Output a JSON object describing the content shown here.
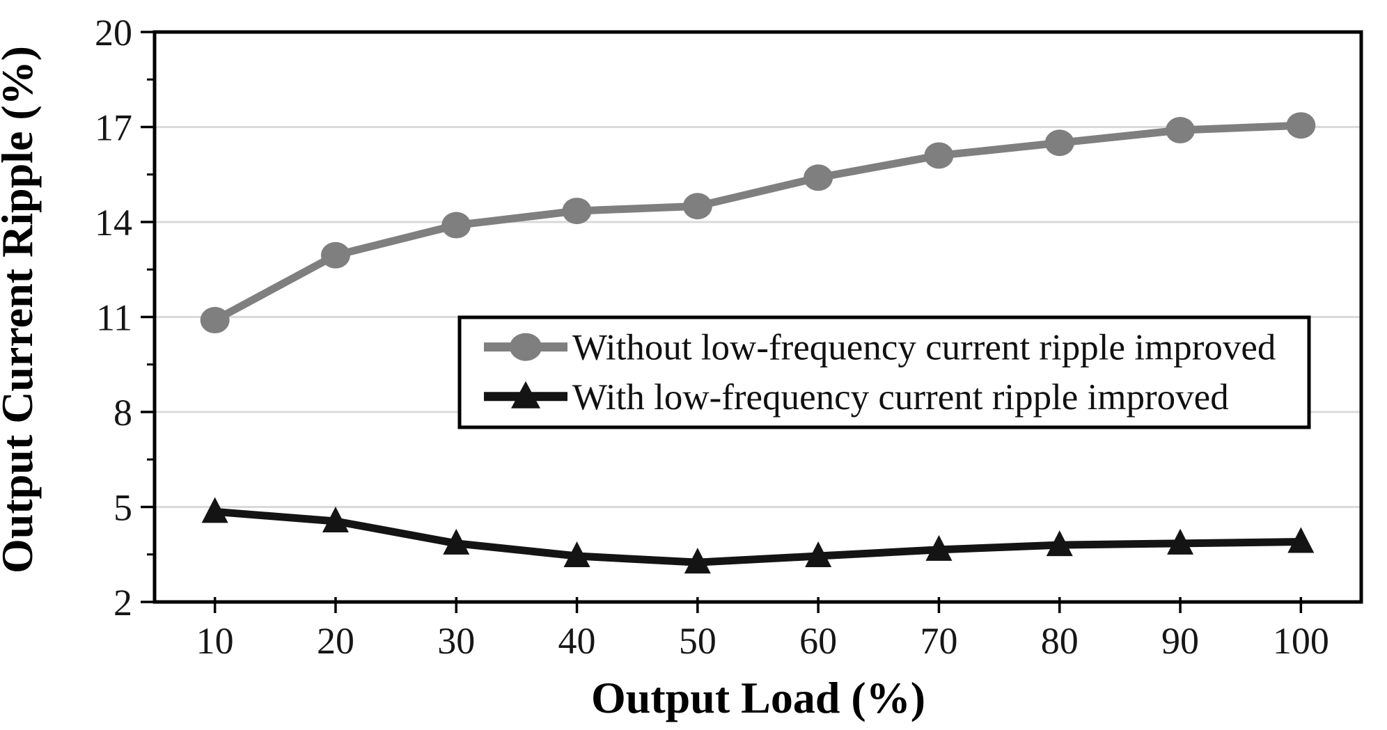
{
  "chart_data": {
    "type": "line",
    "title": "",
    "xlabel": "Output Load (%)",
    "ylabel": "Output Current Ripple (%)",
    "x": [
      10,
      20,
      30,
      40,
      50,
      60,
      70,
      80,
      90,
      100
    ],
    "x_tick_labels": [
      "10",
      "20",
      "30",
      "40",
      "50",
      "60",
      "70",
      "80",
      "90",
      "100"
    ],
    "series": [
      {
        "name": "Without low-frequency current ripple improved",
        "marker": "circle",
        "color": "#7f7f7f",
        "values": [
          10.9,
          12.95,
          13.9,
          14.35,
          14.5,
          15.4,
          16.1,
          16.5,
          16.9,
          17.05
        ]
      },
      {
        "name": "With low-frequency current ripple improved",
        "marker": "triangle",
        "color": "#141414",
        "values": [
          4.85,
          4.55,
          3.85,
          3.45,
          3.25,
          3.45,
          3.65,
          3.8,
          3.85,
          3.9
        ]
      }
    ],
    "ylim": [
      2,
      20
    ],
    "y_major_ticks": [
      2,
      5,
      8,
      11,
      14,
      17,
      20
    ],
    "y_minor_ticks": [
      3.5,
      6.5,
      9.5,
      12.5,
      15.5,
      18.5
    ],
    "y_gridlines": [
      5,
      8,
      11,
      14,
      17
    ],
    "grid": true,
    "legend_position": "inside center, boxed",
    "style": {
      "gridline_color": "#d9d9d9",
      "axis_color": "#000000",
      "background_color": "#ffffff",
      "tick_label_color": "#161616"
    }
  }
}
